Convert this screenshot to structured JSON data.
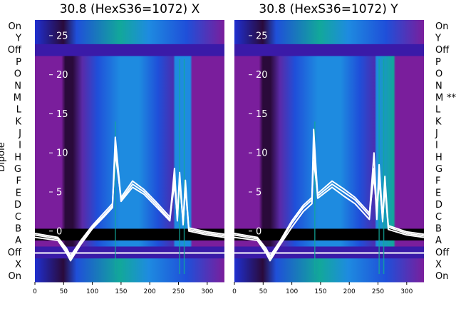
{
  "chart_data": [
    {
      "type": "heatmap",
      "title": "30.8 (HexS36=1072) X",
      "ylabel": "Dipole",
      "x_ticks": [
        "0",
        "50",
        "100",
        "150",
        "200",
        "250",
        "300"
      ],
      "xlim": [
        0,
        330
      ],
      "y_ticks": [
        "0",
        "5",
        "10",
        "15",
        "20",
        "25"
      ],
      "ylim": [
        -6.5,
        27
      ],
      "row_labels": [
        "On",
        "X",
        "Off",
        "A",
        "B",
        "C",
        "D",
        "E",
        "F",
        "G",
        "H",
        "I",
        "J",
        "K",
        "L",
        "M",
        "N",
        "O",
        "P",
        "Off",
        "Y",
        "On"
      ],
      "marked_rows": [],
      "series": [
        {
          "name": "",
          "x": [
            0,
            40,
            55,
            62,
            80,
            100,
            120,
            135,
            140,
            150,
            170,
            190,
            210,
            235,
            243,
            248,
            252,
            258,
            262,
            268,
            300,
            330
          ],
          "y": [
            -0.5,
            -1,
            -2.5,
            -3.5,
            -1.5,
            0.5,
            2,
            3.2,
            12,
            4,
            6,
            5,
            3.5,
            1.5,
            8,
            1.5,
            7.5,
            1,
            6.5,
            0.2,
            -0.3,
            -0.6
          ]
        },
        {
          "name": "",
          "x": [
            0,
            40,
            55,
            62,
            80,
            100,
            120,
            135,
            140,
            150,
            170,
            190,
            210,
            235,
            243,
            248,
            252,
            258,
            262,
            268,
            300,
            330
          ],
          "y": [
            -0.8,
            -1.2,
            -2.8,
            -3.8,
            -1.7,
            0.3,
            1.8,
            3,
            11,
            3.8,
            5.6,
            4.7,
            3.2,
            1.3,
            7,
            1.3,
            7,
            0.8,
            6,
            0,
            -0.5,
            -0.8
          ]
        },
        {
          "name": "",
          "x": [
            0,
            40,
            55,
            62,
            80,
            100,
            120,
            135,
            140,
            150,
            170,
            190,
            210,
            235,
            243,
            248,
            252,
            258,
            262,
            268,
            300,
            330
          ],
          "y": [
            -0.3,
            -0.8,
            -2.2,
            -3.2,
            -1.2,
            0.7,
            2.3,
            3.5,
            10,
            4.3,
            6.4,
            5.3,
            3.8,
            1.8,
            6,
            1.8,
            6.5,
            1.2,
            5.5,
            0.4,
            -0.1,
            -0.4
          ]
        }
      ]
    },
    {
      "type": "heatmap",
      "title": "30.8 (HexS36=1072) Y",
      "x_ticks": [
        "0",
        "50",
        "100",
        "150",
        "200",
        "250",
        "300"
      ],
      "xlim": [
        0,
        330
      ],
      "y_ticks": [
        "0",
        "5",
        "10",
        "15",
        "20",
        "25"
      ],
      "ylim": [
        -6.5,
        27
      ],
      "row_labels": [
        "On",
        "X",
        "Off",
        "A",
        "B",
        "C",
        "D",
        "E",
        "F",
        "G",
        "H",
        "I",
        "J",
        "K",
        "L",
        "M",
        "N",
        "O",
        "P",
        "Off",
        "Y",
        "On"
      ],
      "marked_rows": [
        "M"
      ],
      "marker_text": "**",
      "series": [
        {
          "name": "",
          "x": [
            0,
            40,
            55,
            62,
            80,
            100,
            120,
            135,
            138,
            145,
            170,
            190,
            210,
            235,
            243,
            248,
            252,
            258,
            262,
            268,
            300,
            330
          ],
          "y": [
            -0.5,
            -1,
            -2.5,
            -3.5,
            -1.5,
            1,
            3,
            4,
            13,
            4.5,
            6,
            5,
            4,
            2,
            10,
            2,
            8.5,
            1.5,
            7,
            0.5,
            -0.3,
            -0.6
          ]
        },
        {
          "name": "",
          "x": [
            0,
            40,
            55,
            62,
            80,
            100,
            120,
            135,
            138,
            145,
            170,
            190,
            210,
            235,
            243,
            248,
            252,
            258,
            262,
            268,
            300,
            330
          ],
          "y": [
            -0.8,
            -1.2,
            -2.8,
            -3.8,
            -1.7,
            0.5,
            2.5,
            3.5,
            11,
            4.2,
            5.6,
            4.5,
            3.5,
            1.5,
            8,
            1.5,
            7.5,
            1.2,
            6,
            0.2,
            -0.5,
            -0.8
          ]
        },
        {
          "name": "",
          "x": [
            0,
            40,
            55,
            62,
            80,
            100,
            120,
            135,
            138,
            145,
            170,
            190,
            210,
            235,
            243,
            248,
            252,
            258,
            262,
            268,
            300,
            330
          ],
          "y": [
            -0.3,
            -0.8,
            -2.2,
            -3.2,
            -1.2,
            1.3,
            3.3,
            4.3,
            9,
            4.8,
            6.4,
            5.4,
            4.3,
            2.3,
            7,
            2.3,
            6.5,
            1.7,
            5.5,
            0.7,
            -0.1,
            -0.4
          ]
        }
      ]
    }
  ],
  "colors": {
    "violet": "#7a1e9c",
    "dark_band": "#2a0a3a",
    "blue": "#1f4fd9",
    "light_blue": "#1e8be0",
    "teal": "#12a89a",
    "black": "#000000",
    "trace": "#ffffff"
  }
}
